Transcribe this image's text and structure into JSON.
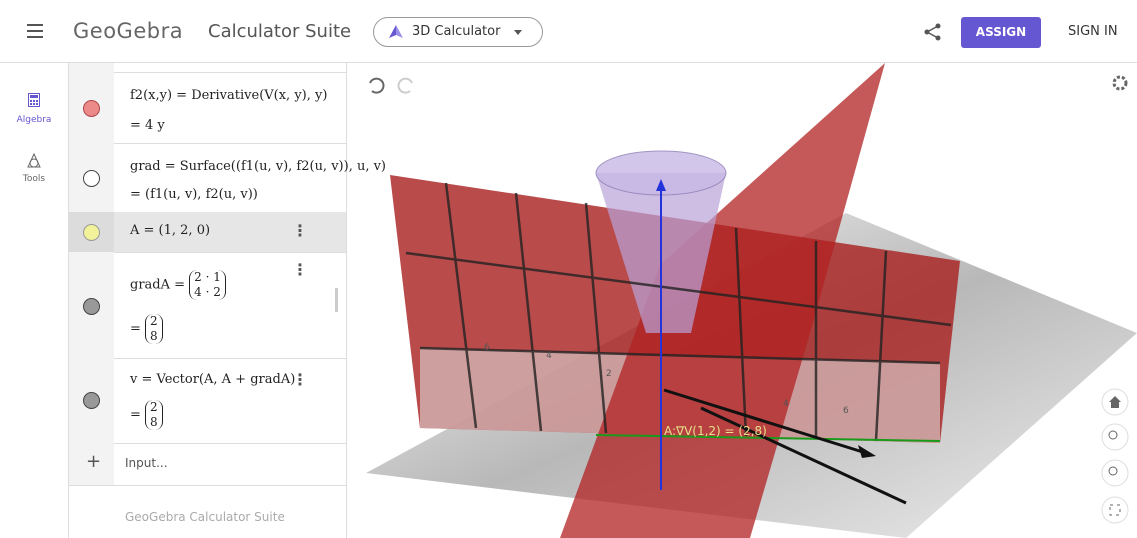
{
  "header": {
    "logo": "GeoGebra",
    "suite": "Calculator Suite",
    "app": "3D Calculator",
    "assign": "ASSIGN",
    "sign_in": "SIGN IN"
  },
  "sidebar": {
    "items": [
      "Algebra",
      "Tools"
    ]
  },
  "algebra": {
    "rows": [
      {
        "input": "f2(x,y) = Derivative(V(x, y), y)",
        "output": "= 4 y"
      },
      {
        "input": "grad = Surface((f1(u, v), f2(u, v)), u, v)",
        "output": "= (f1(u, v), f2(u, v))"
      },
      {
        "input": "A = (1, 2, 0)"
      },
      {
        "name": "gradA =",
        "matrix": [
          "2 · 1",
          "4 · 2"
        ],
        "output_prefix": "=",
        "output_matrix": [
          "2",
          "8"
        ]
      },
      {
        "input": "v = Vector(A, A + gradA)",
        "output_prefix": "=",
        "output_matrix": [
          "2",
          "8"
        ]
      }
    ],
    "input_placeholder": "Input...",
    "footer": "GeoGebra Calculator Suite"
  },
  "graphics": {
    "label": "A:∇V(1,2) = (2,8)",
    "axis_labels": [
      "6",
      "4",
      "4",
      "6",
      "2"
    ]
  }
}
